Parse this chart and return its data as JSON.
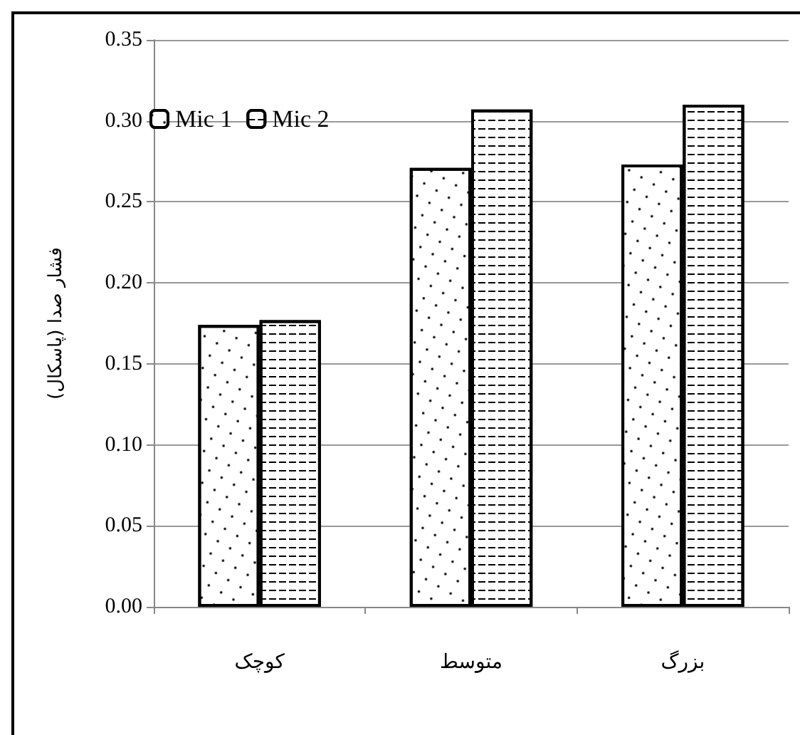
{
  "chart_data": {
    "type": "bar",
    "ylabel": "فشار صدا (پاسکال)",
    "categories": [
      "کوچک",
      "متوسط",
      "بزرگ"
    ],
    "series": [
      {
        "name": "Mic 1",
        "color": "#ffffff",
        "values": [
          0.174,
          0.271,
          0.273
        ]
      },
      {
        "name": "Mic 2",
        "color": "#ffffff",
        "values": [
          0.177,
          0.307,
          0.31
        ]
      }
    ],
    "ylim": [
      0,
      0.35
    ],
    "yticks": [
      {
        "value": 0,
        "label": "0.00"
      },
      {
        "value": 0.05,
        "label": "0.05"
      },
      {
        "value": 0.1,
        "label": "0.10"
      },
      {
        "value": 0.15,
        "label": "0.15"
      },
      {
        "value": 0.2,
        "label": "0.20"
      },
      {
        "value": 0.25,
        "label": "0.25"
      },
      {
        "value": 0.3,
        "label": "0.30"
      },
      {
        "value": 0.35,
        "label": "0.35"
      }
    ],
    "grid": "y",
    "legend": "top left"
  }
}
